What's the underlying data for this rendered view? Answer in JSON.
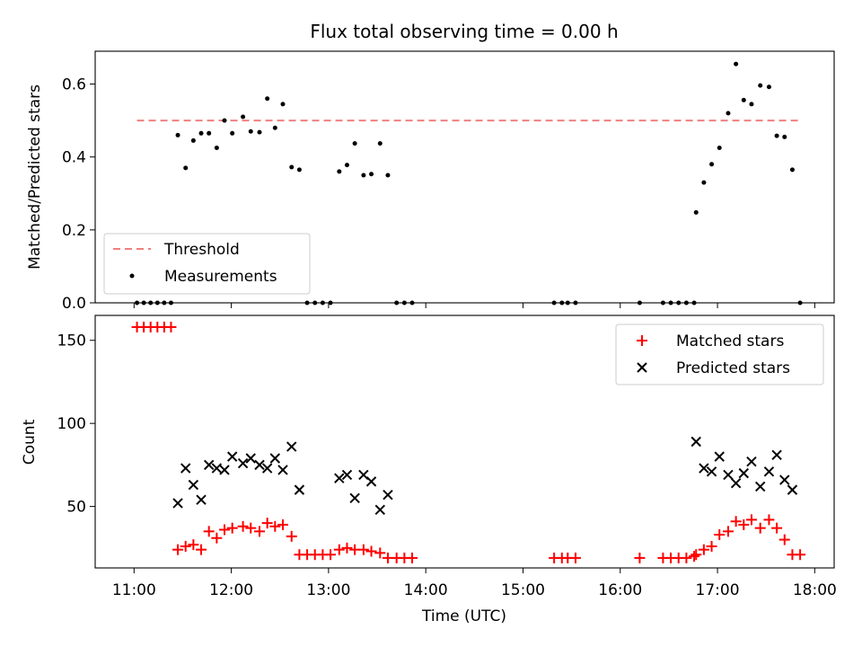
{
  "title": "Flux total observing time = 0.00 h",
  "chart_data": [
    {
      "type": "scatter",
      "ylabel": "Matched/Predicted stars",
      "xlabel": "",
      "xlim": [
        10.6,
        18.2
      ],
      "ylim": [
        0,
        0.69
      ],
      "yticks": [
        0.0,
        0.2,
        0.4,
        0.6
      ],
      "ytick_labels": [
        "0.0",
        "0.2",
        "0.4",
        "0.6"
      ],
      "grid": false,
      "legend_position": "lower-left",
      "threshold": {
        "name": "Threshold",
        "value": 0.5,
        "x_range": [
          11.03,
          17.85
        ],
        "color": "#f08080"
      },
      "series": [
        {
          "name": "Measurements",
          "color": "#000000",
          "x": [
            11.03,
            11.1,
            11.17,
            11.24,
            11.31,
            11.38,
            11.45,
            11.53,
            11.61,
            11.69,
            11.77,
            11.85,
            11.93,
            12.01,
            12.12,
            12.2,
            12.29,
            12.37,
            12.45,
            12.53,
            12.62,
            12.7,
            12.78,
            12.86,
            12.94,
            13.02,
            13.11,
            13.19,
            13.27,
            13.36,
            13.44,
            13.53,
            13.61,
            13.7,
            13.78,
            13.86,
            15.32,
            15.4,
            15.46,
            15.54,
            16.2,
            16.44,
            16.52,
            16.6,
            16.68,
            16.76,
            16.78,
            16.86,
            16.94,
            17.02,
            17.11,
            17.19,
            17.27,
            17.35,
            17.44,
            17.53,
            17.61,
            17.69,
            17.77,
            17.85
          ],
          "y": [
            0.0,
            0.0,
            0.0,
            0.0,
            0.0,
            0.0,
            0.46,
            0.37,
            0.445,
            0.465,
            0.465,
            0.425,
            0.5,
            0.465,
            0.51,
            0.47,
            0.468,
            0.56,
            0.48,
            0.545,
            0.372,
            0.365,
            0.0,
            0.0,
            0.0,
            0.0,
            0.36,
            0.378,
            0.437,
            0.35,
            0.353,
            0.437,
            0.35,
            0.0,
            0.0,
            0.0,
            0.0,
            0.0,
            0.0,
            0.0,
            0.0,
            0.0,
            0.0,
            0.0,
            0.0,
            0.0,
            0.248,
            0.33,
            0.38,
            0.425,
            0.52,
            0.655,
            0.556,
            0.545,
            0.596,
            0.592,
            0.458,
            0.455,
            0.365,
            0.0
          ]
        }
      ]
    },
    {
      "type": "scatter",
      "ylabel": "Count",
      "xlabel": "Time (UTC)",
      "xlim": [
        10.6,
        18.2
      ],
      "ylim": [
        13,
        165
      ],
      "yticks": [
        50,
        100,
        150
      ],
      "ytick_labels": [
        "50",
        "100",
        "150"
      ],
      "xticks": [
        11,
        12,
        13,
        14,
        15,
        16,
        17,
        18
      ],
      "xtick_labels": [
        "11:00",
        "12:00",
        "13:00",
        "14:00",
        "15:00",
        "16:00",
        "17:00",
        "18:00"
      ],
      "grid": false,
      "legend_position": "upper-right",
      "series": [
        {
          "name": "Matched stars",
          "marker": "plus",
          "color": "#ff0000",
          "x": [
            11.03,
            11.1,
            11.17,
            11.24,
            11.31,
            11.38,
            11.45,
            11.53,
            11.61,
            11.69,
            11.77,
            11.85,
            11.93,
            12.01,
            12.12,
            12.2,
            12.29,
            12.37,
            12.45,
            12.53,
            12.62,
            12.7,
            12.78,
            12.86,
            12.94,
            13.02,
            13.11,
            13.19,
            13.27,
            13.36,
            13.44,
            13.53,
            13.61,
            13.7,
            13.78,
            13.86,
            15.32,
            15.4,
            15.46,
            15.54,
            16.2,
            16.44,
            16.52,
            16.6,
            16.68,
            16.76,
            16.78,
            16.86,
            16.94,
            17.02,
            17.11,
            17.19,
            17.27,
            17.35,
            17.44,
            17.53,
            17.61,
            17.69,
            17.77,
            17.85
          ],
          "y": [
            158,
            158,
            158,
            158,
            158,
            158,
            24,
            26,
            27,
            24,
            35,
            31,
            36,
            37,
            38,
            37,
            35,
            40,
            38,
            39,
            32,
            21,
            21,
            21,
            21,
            21,
            24,
            25,
            24,
            24,
            23,
            22,
            19,
            19,
            19,
            19,
            19,
            19,
            19,
            19,
            19,
            19,
            19,
            19,
            19,
            20,
            21,
            24,
            26,
            33,
            35,
            41,
            39,
            42,
            37,
            42,
            37,
            30,
            21,
            21
          ]
        },
        {
          "name": "Predicted stars",
          "marker": "x",
          "color": "#000000",
          "x": [
            11.45,
            11.53,
            11.61,
            11.69,
            11.77,
            11.85,
            11.93,
            12.01,
            12.12,
            12.2,
            12.29,
            12.37,
            12.45,
            12.53,
            12.62,
            12.7,
            13.11,
            13.19,
            13.27,
            13.36,
            13.44,
            13.53,
            13.61,
            16.78,
            16.86,
            16.94,
            17.02,
            17.11,
            17.19,
            17.27,
            17.35,
            17.44,
            17.53,
            17.61,
            17.69,
            17.77
          ],
          "y": [
            52,
            73,
            63,
            54,
            75,
            73,
            72,
            80,
            76,
            79,
            75,
            73,
            79,
            72,
            86,
            60,
            67,
            69,
            55,
            69,
            65,
            48,
            57,
            89,
            73,
            71,
            80,
            69,
            64,
            70,
            77,
            62,
            71,
            81,
            66,
            60
          ]
        }
      ]
    }
  ]
}
